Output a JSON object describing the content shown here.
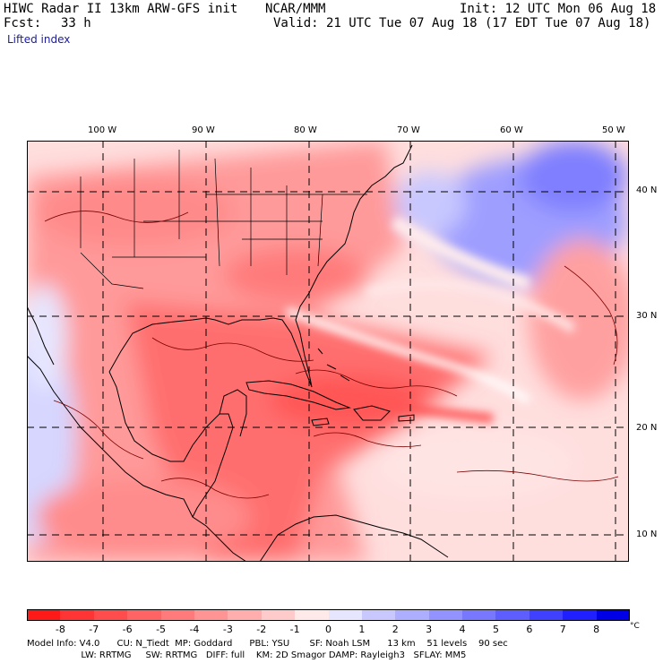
{
  "header": {
    "title_left": "HIWC Radar II 13km ARW-GFS init",
    "org": "NCAR/MMM",
    "init": "Init: 12 UTC Mon 06 Aug 18",
    "fcst_label": "Fcst:",
    "fcst_value": "33 h",
    "valid": "Valid: 21 UTC Tue 07 Aug 18 (17 EDT Tue 07 Aug 18)",
    "field": "Lifted index"
  },
  "map": {
    "lon_labels": [
      "100 W",
      "90 W",
      "80 W",
      "70 W",
      "60 W",
      "50 W"
    ],
    "lat_labels": [
      "40 N",
      "30 N",
      "20 N",
      "10 N"
    ]
  },
  "colorbar": {
    "unit": "°C",
    "labels": [
      "-8",
      "-7",
      "-6",
      "-5",
      "-4",
      "-3",
      "-2",
      "-1",
      "0",
      "1",
      "2",
      "3",
      "4",
      "5",
      "6",
      "7",
      "8"
    ],
    "colors": [
      "#ff1a1a",
      "#ff3535",
      "#ff4d4d",
      "#ff6464",
      "#ff7b7b",
      "#ff9494",
      "#ffadad",
      "#ffcaca",
      "#ffeaea",
      "#e6e6ff",
      "#c8c8ff",
      "#aeaeff",
      "#9393ff",
      "#7878ff",
      "#5e5eff",
      "#4040ff",
      "#2020ff",
      "#0000e6"
    ]
  },
  "info": {
    "line1": "Model Info: V4.0      CU: N_Tiedt  MP: Goddard      PBL: YSU       SF: Noah LSM      13 km    51 levels    90 sec",
    "line2": "                   LW: RRTMG     SW: RRTMG   DIFF: full    KM: 2D Smagor DAMP: Rayleigh3   SFLAY: MM5"
  }
}
